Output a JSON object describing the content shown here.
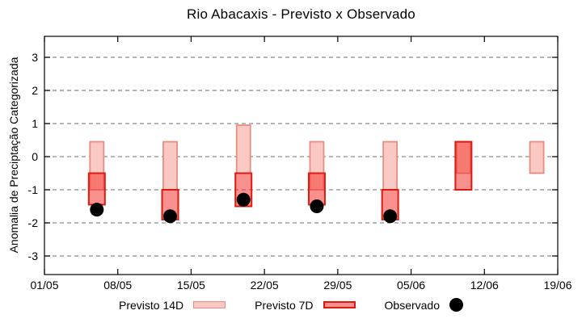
{
  "chart_data": {
    "type": "range-bar",
    "title": "Rio Abacaxis - Previsto x Observado",
    "ylabel": "Anomalia de Preciptação Categorizada",
    "xlabel": "",
    "ylim": [
      -3.6,
      3.6
    ],
    "grid": true,
    "legend_position": "bottom",
    "x_ticks": [
      {
        "label": "01/05",
        "day": 0
      },
      {
        "label": "08/05",
        "day": 7
      },
      {
        "label": "15/05",
        "day": 14
      },
      {
        "label": "22/05",
        "day": 21
      },
      {
        "label": "29/05",
        "day": 28
      },
      {
        "label": "05/06",
        "day": 35
      },
      {
        "label": "12/06",
        "day": 42
      },
      {
        "label": "19/06",
        "day": 49
      }
    ],
    "y_ticks": [
      3,
      2,
      1,
      0,
      -1,
      -2,
      -3
    ],
    "series": [
      {
        "name": "Previsto 14D",
        "type": "range-box",
        "fill": "#fbc9c3",
        "border": "#e88d81",
        "points": [
          {
            "date": "06/05",
            "day": 5,
            "from": 0.45,
            "to": -1.0
          },
          {
            "date": "13/05",
            "day": 12,
            "from": 0.45,
            "to": -1.0
          },
          {
            "date": "20/05",
            "day": 19,
            "from": 0.95,
            "to": -0.5
          },
          {
            "date": "27/05",
            "day": 26,
            "from": 0.45,
            "to": -1.0
          },
          {
            "date": "03/06",
            "day": 33,
            "from": 0.45,
            "to": -1.0
          },
          {
            "date": "10/06",
            "day": 40,
            "from": 0.45,
            "to": -0.5
          },
          {
            "date": "17/06",
            "day": 47,
            "from": 0.45,
            "to": -0.5
          }
        ]
      },
      {
        "name": "Previsto 7D",
        "type": "range-box",
        "fill": "rgba(242,55,48,0.55)",
        "border": "#dd1a12",
        "points": [
          {
            "date": "06/05",
            "day": 5,
            "from": -0.5,
            "to": -1.45
          },
          {
            "date": "13/05",
            "day": 12,
            "from": -1.0,
            "to": -1.9
          },
          {
            "date": "20/05",
            "day": 19,
            "from": -0.5,
            "to": -1.5
          },
          {
            "date": "27/05",
            "day": 26,
            "from": -0.5,
            "to": -1.45
          },
          {
            "date": "03/06",
            "day": 33,
            "from": -1.0,
            "to": -1.9
          },
          {
            "date": "10/06",
            "day": 40,
            "from": 0.45,
            "to": -1.0
          }
        ]
      },
      {
        "name": "Observado",
        "type": "scatter",
        "color": "#000000",
        "points": [
          {
            "date": "06/05",
            "day": 5,
            "value": -1.6
          },
          {
            "date": "13/05",
            "day": 12,
            "value": -1.8
          },
          {
            "date": "20/05",
            "day": 19,
            "value": -1.3
          },
          {
            "date": "27/05",
            "day": 26,
            "value": -1.5
          },
          {
            "date": "03/06",
            "day": 33,
            "value": -1.8
          }
        ]
      }
    ],
    "colors": {
      "grid": "#8a8a8a",
      "axis_border": "#000000",
      "text": "#000000"
    }
  },
  "legend": {
    "items": [
      {
        "label": "Previsto 14D",
        "key": "box-light"
      },
      {
        "label": "Previsto 7D",
        "key": "box-dark"
      },
      {
        "label": "Observado",
        "key": "dot"
      }
    ]
  }
}
